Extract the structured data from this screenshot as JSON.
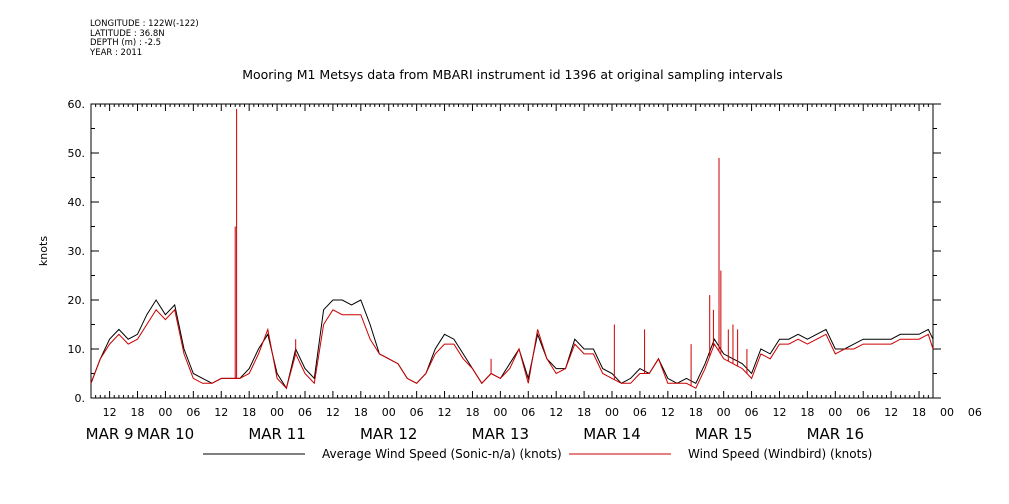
{
  "header": {
    "longitude": "LONGITUDE : 122W(-122)",
    "latitude": "LATITUDE : 36.8N",
    "depth": "DEPTH (m) : -2.5",
    "year": "YEAR : 2011"
  },
  "chart_data": {
    "type": "line",
    "title": "Mooring M1 Metsys data from MBARI instrument id 1396 at original sampling intervals",
    "ylabel": "knots",
    "xlabel": "",
    "ylim": [
      0,
      60
    ],
    "yticks": [
      "0.",
      "10.",
      "20.",
      "30.",
      "40.",
      "50.",
      "60."
    ],
    "xlim_hours": [
      8,
      189
    ],
    "x_unit": "hours since MAR 9 00:00, 2011",
    "hour_ticks": [
      "12",
      "18",
      "00",
      "06",
      "12",
      "18",
      "00",
      "06",
      "12",
      "18",
      "00",
      "06",
      "12",
      "18",
      "00",
      "06",
      "12",
      "18",
      "00",
      "06",
      "12",
      "18",
      "00",
      "06",
      "12",
      "18",
      "00",
      "06",
      "12",
      "18",
      "00",
      "06"
    ],
    "date_labels": [
      {
        "label": "MAR  9",
        "hour": 12
      },
      {
        "label": "MAR 10",
        "hour": 24
      },
      {
        "label": "MAR 11",
        "hour": 48
      },
      {
        "label": "MAR 12",
        "hour": 72
      },
      {
        "label": "MAR 13",
        "hour": 96
      },
      {
        "label": "MAR 14",
        "hour": 120
      },
      {
        "label": "MAR 15",
        "hour": 144
      },
      {
        "label": "MAR 16",
        "hour": 168
      }
    ],
    "series": [
      {
        "name": "Average Wind Speed (Sonic-n/a) (knots)",
        "color": "#000000",
        "x": [
          8,
          10,
          12,
          14,
          16,
          18,
          20,
          22,
          24,
          26,
          28,
          30,
          32,
          34,
          36,
          38,
          40,
          42,
          44,
          46,
          48,
          50,
          52,
          54,
          56,
          58,
          60,
          62,
          64,
          66,
          68,
          70,
          72,
          74,
          76,
          78,
          80,
          82,
          84,
          86,
          88,
          90,
          92,
          94,
          96,
          98,
          100,
          102,
          104,
          106,
          108,
          110,
          112,
          114,
          116,
          118,
          120,
          122,
          124,
          126,
          128,
          130,
          132,
          134,
          136,
          138,
          140,
          142,
          144,
          146,
          148,
          150,
          152,
          154,
          156,
          158,
          160,
          162,
          164,
          166,
          168,
          170,
          172,
          174,
          176,
          178,
          180,
          182,
          184,
          186,
          188,
          189
        ],
        "values": [
          3,
          8,
          12,
          14,
          12,
          13,
          17,
          20,
          17,
          19,
          10,
          5,
          4,
          3,
          4,
          4,
          4,
          6,
          10,
          13,
          5,
          2,
          10,
          6,
          4,
          18,
          20,
          20,
          19,
          20,
          15,
          9,
          8,
          7,
          4,
          3,
          5,
          10,
          13,
          12,
          9,
          6,
          3,
          5,
          4,
          7,
          10,
          4,
          13,
          8,
          6,
          6,
          12,
          10,
          10,
          6,
          5,
          3,
          4,
          6,
          5,
          8,
          4,
          3,
          4,
          3,
          7,
          12,
          9,
          8,
          7,
          5,
          10,
          9,
          12,
          12,
          13,
          12,
          13,
          14,
          10,
          10,
          11,
          12,
          12,
          12,
          12,
          13,
          13,
          13,
          14,
          12
        ]
      },
      {
        "name": "Wind Speed (Windbird) (knots)",
        "color": "#cc0000",
        "x": [
          8,
          10,
          12,
          14,
          16,
          18,
          20,
          22,
          24,
          26,
          28,
          30,
          32,
          34,
          36,
          38,
          40,
          42,
          44,
          46,
          48,
          50,
          52,
          54,
          56,
          58,
          60,
          62,
          64,
          66,
          68,
          70,
          72,
          74,
          76,
          78,
          80,
          82,
          84,
          86,
          88,
          90,
          92,
          94,
          96,
          98,
          100,
          102,
          104,
          106,
          108,
          110,
          112,
          114,
          116,
          118,
          120,
          122,
          124,
          126,
          128,
          130,
          132,
          134,
          136,
          138,
          140,
          142,
          144,
          146,
          148,
          150,
          152,
          154,
          156,
          158,
          160,
          162,
          164,
          166,
          168,
          170,
          172,
          174,
          176,
          178,
          180,
          182,
          184,
          186,
          188,
          189
        ],
        "values": [
          3,
          8,
          11,
          13,
          11,
          12,
          15,
          18,
          16,
          18,
          9,
          4,
          3,
          3,
          4,
          4,
          4,
          5,
          9,
          14,
          4,
          2,
          9,
          5,
          3,
          15,
          18,
          17,
          17,
          17,
          12,
          9,
          8,
          7,
          4,
          3,
          5,
          9,
          11,
          11,
          8,
          6,
          3,
          5,
          4,
          6,
          10,
          3,
          14,
          8,
          5,
          6,
          11,
          9,
          9,
          5,
          4,
          3,
          3,
          5,
          5,
          8,
          3,
          3,
          3,
          2,
          6,
          11,
          8,
          7,
          6,
          4,
          9,
          8,
          11,
          11,
          12,
          11,
          12,
          13,
          9,
          10,
          10,
          11,
          11,
          11,
          11,
          12,
          12,
          12,
          13,
          10
        ],
        "spikes": [
          {
            "x": 39.0,
            "y": 35
          },
          {
            "x": 39.3,
            "y": 59
          },
          {
            "x": 52.0,
            "y": 12
          },
          {
            "x": 94.0,
            "y": 8
          },
          {
            "x": 120.5,
            "y": 15
          },
          {
            "x": 127.0,
            "y": 14
          },
          {
            "x": 137.0,
            "y": 11
          },
          {
            "x": 141.0,
            "y": 21
          },
          {
            "x": 141.8,
            "y": 18
          },
          {
            "x": 143.0,
            "y": 49
          },
          {
            "x": 143.4,
            "y": 26
          },
          {
            "x": 145.0,
            "y": 14
          },
          {
            "x": 146.0,
            "y": 15
          },
          {
            "x": 147.0,
            "y": 14
          },
          {
            "x": 149.0,
            "y": 10
          }
        ]
      }
    ],
    "legend": {
      "placement": "bottom",
      "entries": [
        "Average Wind Speed (Sonic-n/a) (knots)",
        "Wind Speed (Windbird) (knots)"
      ]
    }
  }
}
